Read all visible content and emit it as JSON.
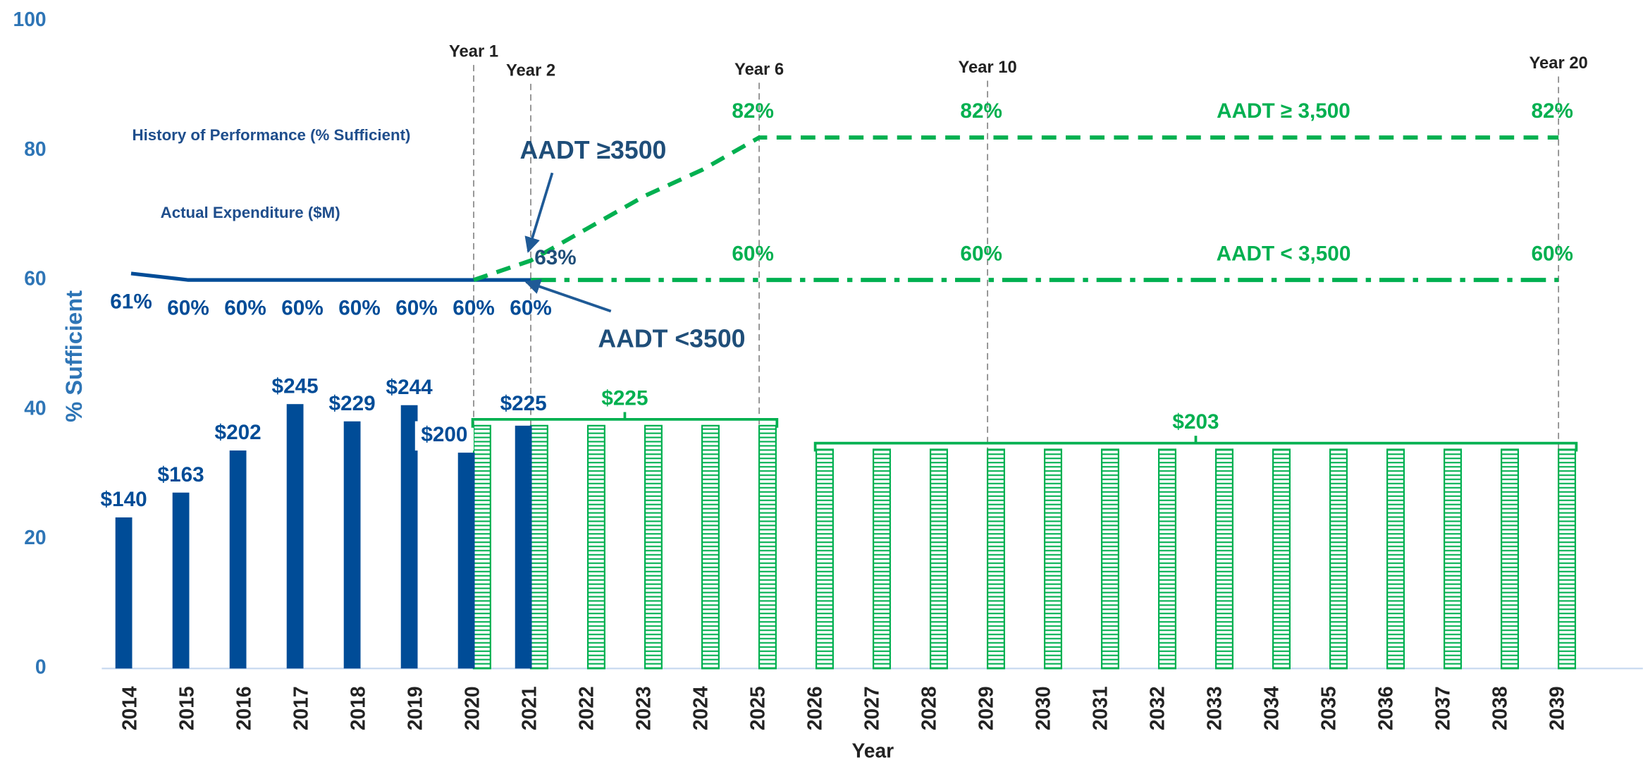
{
  "chart_data": {
    "type": "bar",
    "y_label": "% Sufficient",
    "x_label": "Year",
    "categories": [
      "2014",
      "2015",
      "2016",
      "2017",
      "2018",
      "2019",
      "2020",
      "2021",
      "2022",
      "2023",
      "2024",
      "2025",
      "2026",
      "2027",
      "2028",
      "2029",
      "2030",
      "2031",
      "2032",
      "2033",
      "2034",
      "2035",
      "2036",
      "2037",
      "2038",
      "2039"
    ],
    "ylim": [
      0,
      100
    ],
    "yticks": [
      0,
      20,
      40,
      60,
      80,
      100
    ],
    "y2lim": [
      0,
      600
    ],
    "series": [
      {
        "name": "Actual Expenditure ($M)",
        "type": "bar",
        "axis": "y2",
        "color": "#004c97",
        "values": [
          140,
          163,
          202,
          245,
          229,
          244,
          200,
          225,
          null,
          null,
          null,
          null,
          null,
          null,
          null,
          null,
          null,
          null,
          null,
          null,
          null,
          null,
          null,
          null,
          null,
          null
        ],
        "value_labels": [
          "$140",
          "$163",
          "$202",
          "$245",
          "$229",
          "$244",
          "$200",
          "$225",
          null,
          null,
          null,
          null,
          null,
          null,
          null,
          null,
          null,
          null,
          null,
          null,
          null,
          null,
          null,
          null,
          null,
          null
        ]
      },
      {
        "type": "bar",
        "axis": "y2",
        "color": "#00b050",
        "hatch": true,
        "values": [
          null,
          null,
          null,
          null,
          null,
          null,
          225,
          225,
          225,
          225,
          225,
          225,
          203,
          203,
          203,
          203,
          203,
          203,
          203,
          203,
          203,
          203,
          203,
          203,
          203,
          203
        ]
      },
      {
        "name": "History of Performance (% Sufficient)",
        "type": "line",
        "color": "#004c97",
        "dash": "solid",
        "values": [
          61,
          60,
          60,
          60,
          60,
          60,
          60,
          60,
          null,
          null,
          null,
          null,
          null,
          null,
          null,
          null,
          null,
          null,
          null,
          null,
          null,
          null,
          null,
          null,
          null,
          null
        ],
        "value_labels": [
          "61%",
          "60%",
          "60%",
          "60%",
          "60%",
          "60%",
          "60%",
          "60%",
          null,
          null,
          null,
          null,
          null,
          null,
          null,
          null,
          null,
          null,
          null,
          null,
          null,
          null,
          null,
          null,
          null,
          null
        ]
      },
      {
        "name": "AADT  ≥ 3,500",
        "type": "line",
        "color": "#00b050",
        "dash": "dashed",
        "values": [
          null,
          null,
          null,
          null,
          null,
          null,
          60,
          63,
          68,
          73,
          77,
          82,
          82,
          82,
          82,
          82,
          82,
          82,
          82,
          82,
          82,
          82,
          82,
          82,
          82,
          82
        ],
        "value_labels": [
          null,
          null,
          null,
          null,
          null,
          null,
          null,
          null,
          null,
          null,
          null,
          "82%",
          null,
          null,
          null,
          "82%",
          null,
          null,
          null,
          null,
          null,
          null,
          null,
          null,
          null,
          "82%"
        ]
      },
      {
        "name": "AADT < 3,500",
        "type": "line",
        "color": "#00b050",
        "dash": "dashdot",
        "values": [
          null,
          null,
          null,
          null,
          null,
          null,
          null,
          60,
          60,
          60,
          60,
          60,
          60,
          60,
          60,
          60,
          60,
          60,
          60,
          60,
          60,
          60,
          60,
          60,
          60,
          60
        ],
        "value_labels": [
          null,
          null,
          null,
          null,
          null,
          null,
          null,
          null,
          null,
          null,
          null,
          "60%",
          null,
          null,
          null,
          "60%",
          null,
          null,
          null,
          null,
          null,
          null,
          null,
          null,
          null,
          "60%"
        ]
      }
    ],
    "brackets": [
      {
        "label": "$225",
        "from": "2020",
        "to": "2025"
      },
      {
        "label": "$203",
        "from": "2026",
        "to": "2039"
      }
    ],
    "milestones": [
      {
        "label": "Year 1",
        "x": "2020"
      },
      {
        "label": "Year 2",
        "x": "2021"
      },
      {
        "label": "Year 6",
        "x": "2025"
      },
      {
        "label": "Year 10",
        "x": "2029"
      },
      {
        "label": "Year 20",
        "x": "2039"
      }
    ],
    "annotations": [
      "AADT ≥3500",
      "AADT <3500",
      "63%"
    ]
  }
}
